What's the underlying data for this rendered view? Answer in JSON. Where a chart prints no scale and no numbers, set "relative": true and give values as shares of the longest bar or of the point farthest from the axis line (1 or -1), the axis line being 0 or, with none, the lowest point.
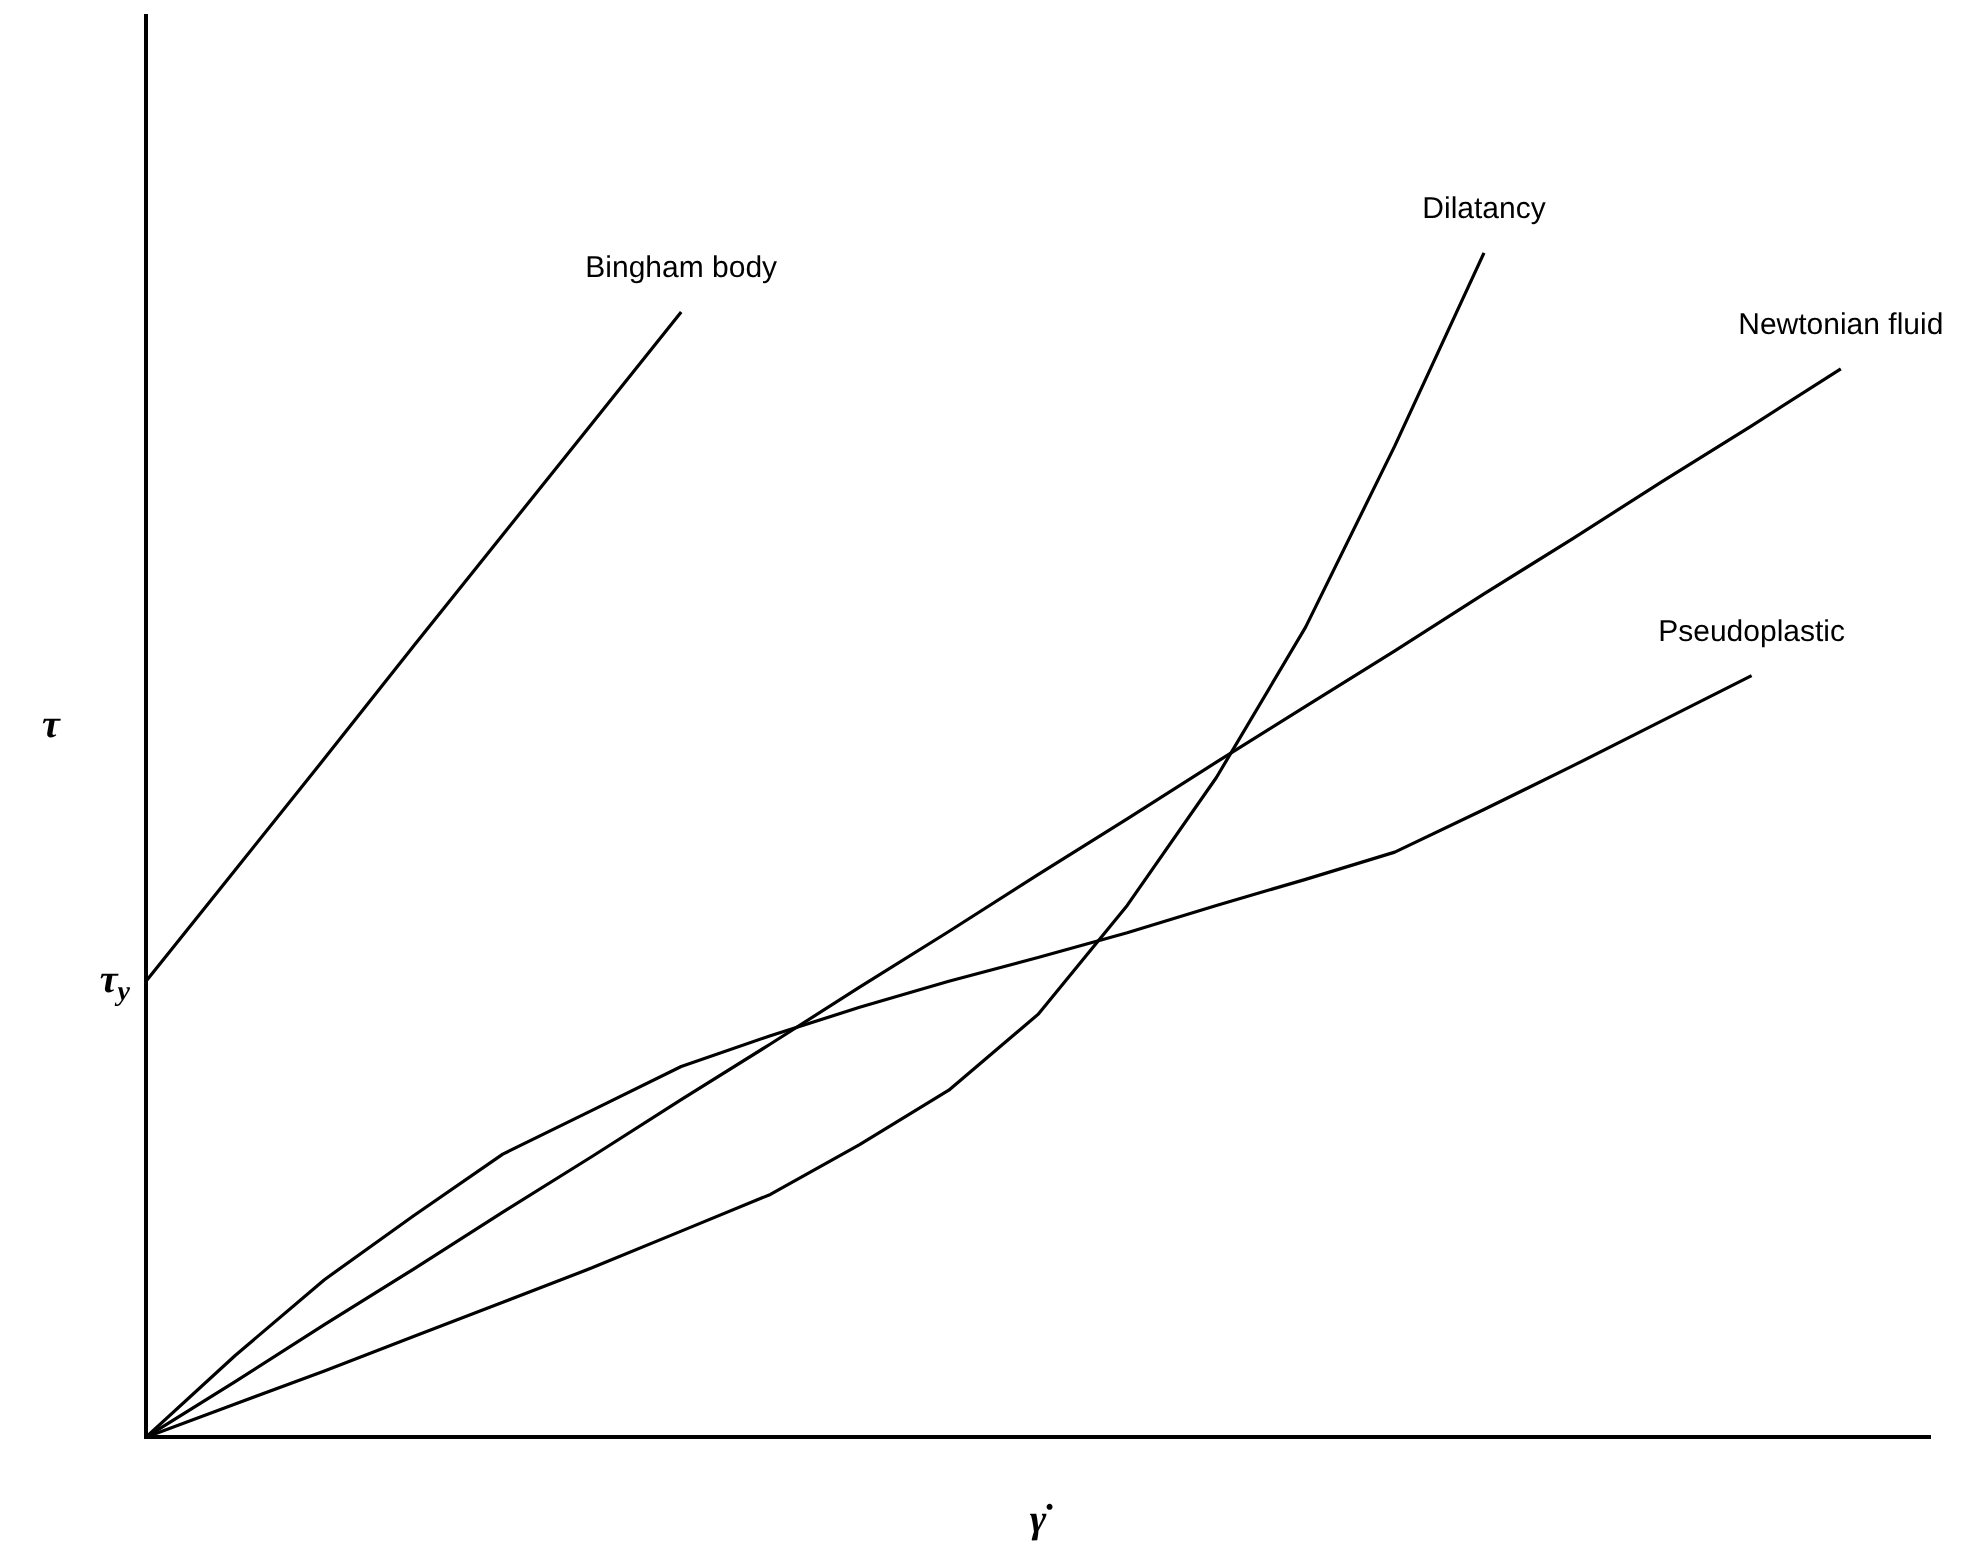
{
  "chart_data": {
    "type": "line",
    "relative": true,
    "xlabel": "γ̇",
    "ylabel": "τ",
    "grid": false,
    "legend": false,
    "marker": "none",
    "line_style": "solid",
    "categories": [
      null,
      null,
      null,
      null,
      null,
      null,
      null,
      null,
      null,
      null,
      null,
      null,
      null,
      null,
      null,
      null,
      null,
      null,
      null,
      null,
      null
    ],
    "annotations": [
      "τ$_{y}$"
    ],
    "series": [
      {
        "name": "Bingham body",
        "color": "#000000",
        "values": [
          0.385,
          0.479,
          0.573,
          0.668,
          0.762,
          0.856,
          0.95,
          null,
          null,
          null,
          null,
          null,
          null,
          null,
          null,
          null,
          null,
          null,
          null,
          null,
          null
        ]
      },
      {
        "name": "Dilatancy",
        "color": "#000000",
        "values": [
          0,
          0.028,
          0.056,
          0.085,
          0.114,
          0.143,
          0.174,
          0.205,
          0.247,
          0.293,
          0.357,
          0.449,
          0.557,
          0.684,
          0.837,
          1,
          null,
          null,
          null,
          null,
          null
        ]
      },
      {
        "name": "Newtonian fluid",
        "color": "#000000",
        "values": [
          0,
          0.047,
          0.095,
          0.142,
          0.19,
          0.237,
          0.285,
          0.332,
          0.38,
          0.427,
          0.475,
          0.522,
          0.57,
          0.617,
          0.664,
          0.712,
          0.759,
          0.807,
          0.854,
          0.902,
          null
        ]
      },
      {
        "name": "Pseudoplastic",
        "color": "#000000",
        "values": [
          0,
          0.069,
          0.133,
          0.187,
          0.239,
          0.276,
          0.313,
          0.339,
          0.363,
          0.385,
          0.405,
          0.426,
          0.449,
          0.471,
          0.494,
          0.53,
          0.567,
          0.605,
          0.643,
          null,
          null
        ]
      }
    ]
  }
}
